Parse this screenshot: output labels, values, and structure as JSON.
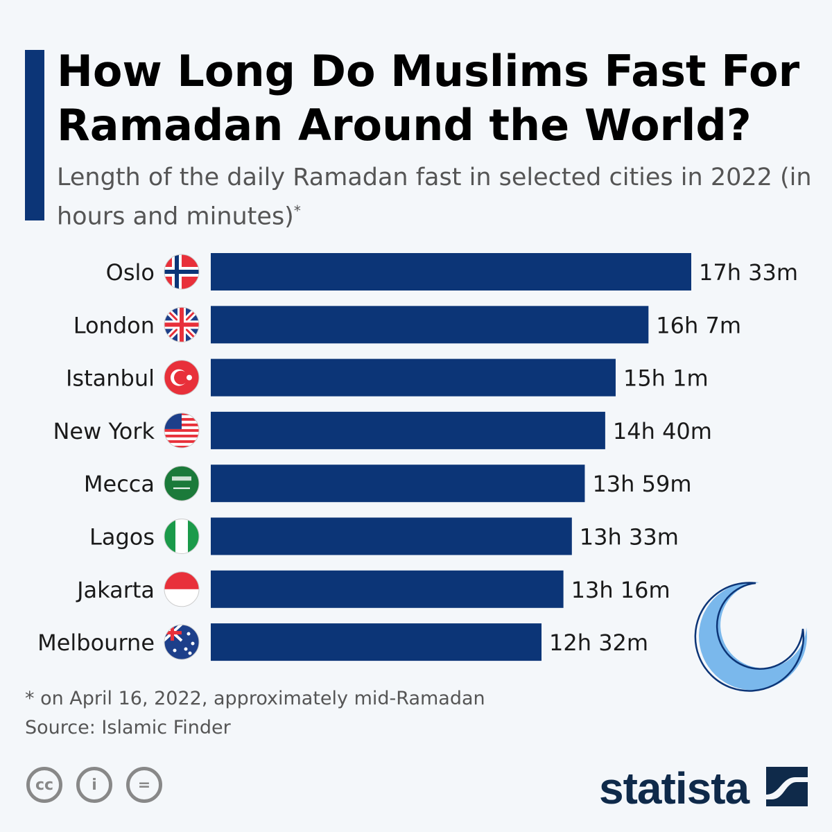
{
  "title": "How Long Do Muslims Fast For Ramadan Around the World?",
  "subtitle": "Length of the daily Ramadan fast in selected cities in 2022 (in hours and minutes)",
  "subtitle_mark": "*",
  "footnote": "* on April 16, 2022, approximately mid-Ramadan",
  "source": "Source: Islamic Finder",
  "brand": "statista",
  "license_icons": [
    "cc-icon",
    "attribution-icon",
    "no-derivatives-icon"
  ],
  "colors": {
    "bar": "#0c3577",
    "moon": "#7ab8ec"
  },
  "chart_data": {
    "type": "bar",
    "orientation": "horizontal",
    "categories": [
      "Oslo",
      "London",
      "Istanbul",
      "New York",
      "Mecca",
      "Lagos",
      "Jakarta",
      "Melbourne"
    ],
    "flags": [
      "norway",
      "uk",
      "turkey",
      "usa",
      "saudi-arabia",
      "nigeria",
      "indonesia",
      "australia"
    ],
    "values_hours": [
      17.55,
      16.117,
      15.017,
      14.667,
      13.983,
      13.55,
      13.267,
      12.533
    ],
    "labels": [
      "17h 33m",
      "16h 7m",
      "15h 1m",
      "14h 40m",
      "13h 59m",
      "13h 33m",
      "13h 16m",
      "12h 32m"
    ]
  }
}
